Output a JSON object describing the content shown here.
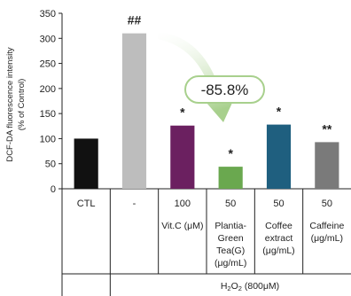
{
  "chart_data": {
    "type": "bar",
    "title": "",
    "ylabel_line1": "DCF-DA fluorescence intensity",
    "ylabel_line2": "(% of Control)",
    "ylim": [
      0,
      350
    ],
    "yticks": [
      "0",
      "50",
      "100",
      "150",
      "200",
      "250",
      "300",
      "350"
    ],
    "grid": false,
    "categories": [
      {
        "dose": "CTL",
        "lines": []
      },
      {
        "dose": "-",
        "lines": []
      },
      {
        "dose": "100",
        "lines": [
          "Vit.C (μM)"
        ]
      },
      {
        "dose": "50",
        "lines": [
          "Plantia-",
          "Green",
          "Tea(G)",
          "(μg/mL)"
        ]
      },
      {
        "dose": "50",
        "lines": [
          "Coffee",
          "extract",
          "(μg/mL)"
        ]
      },
      {
        "dose": "50",
        "lines": [
          "Caffeine",
          "(μg/mL)"
        ]
      }
    ],
    "values": [
      100,
      310,
      126,
      44,
      128,
      93
    ],
    "colors": [
      "#111111",
      "#bdbdbd",
      "#6b2060",
      "#6aa84f",
      "#1f5f7f",
      "#7a7a7a"
    ],
    "significance": [
      "",
      "##",
      "*",
      "*",
      "*",
      "**"
    ],
    "annotation": {
      "text": "-85.8%",
      "arrow_color": "#a8d08d"
    },
    "footer": {
      "prefix": "H",
      "sub": "2",
      "mid": "O",
      "sub2": "2",
      "suffix": " (800μM)"
    }
  }
}
